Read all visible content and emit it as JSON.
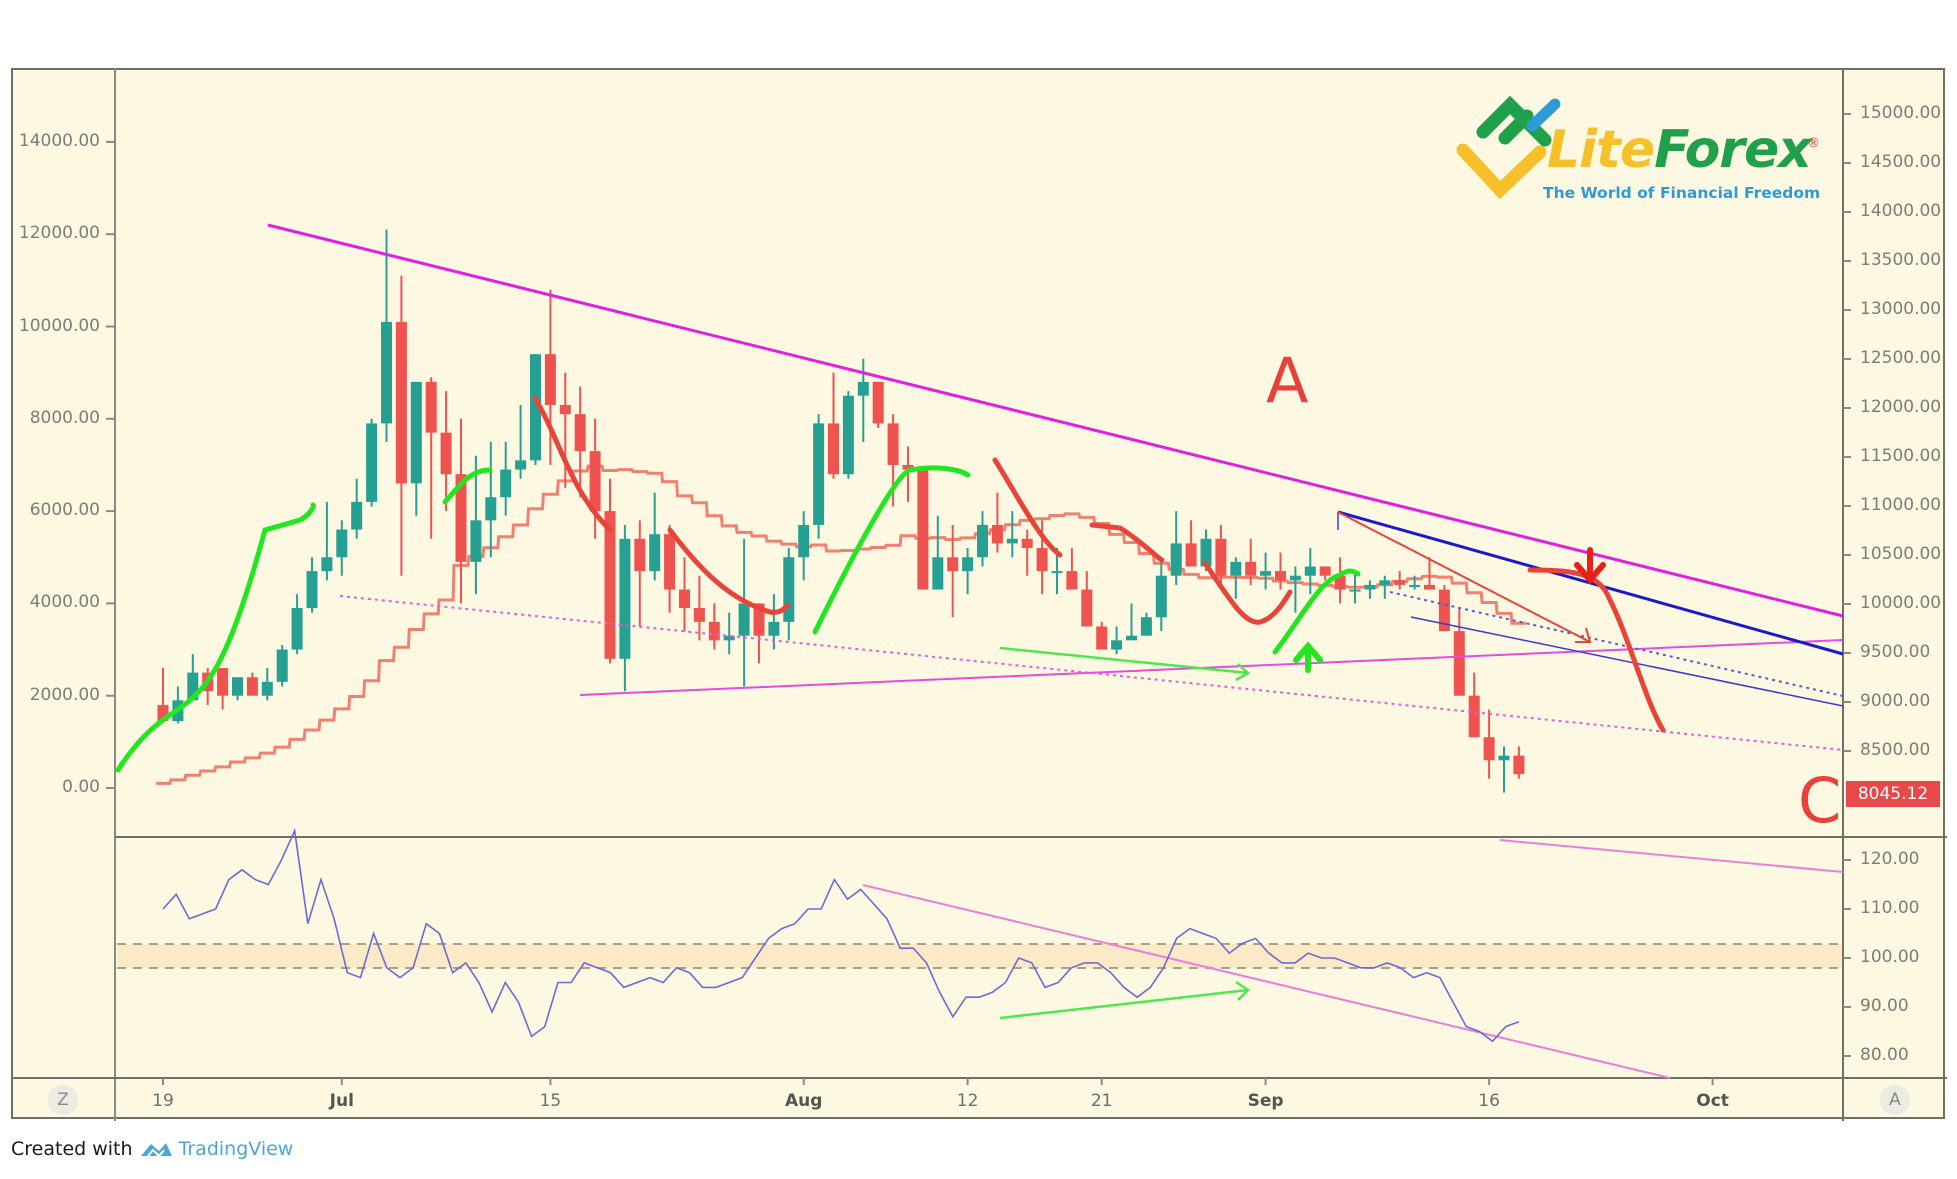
{
  "chart_data": {
    "type": "candlestick",
    "title": "",
    "xlabel": "",
    "ylabel": "",
    "x_ticks": [
      {
        "label": "19",
        "day": 0,
        "bold": false
      },
      {
        "label": "Jul",
        "day": 12,
        "bold": true
      },
      {
        "label": "15",
        "day": 26,
        "bold": false
      },
      {
        "label": "Aug",
        "day": 43,
        "bold": true
      },
      {
        "label": "12",
        "day": 54,
        "bold": false
      },
      {
        "label": "21",
        "day": 63,
        "bold": false
      },
      {
        "label": "Sep",
        "day": 74,
        "bold": true
      },
      {
        "label": "16",
        "day": 89,
        "bold": false
      },
      {
        "label": "Oct",
        "day": 104,
        "bold": true
      }
    ],
    "left_axis": {
      "ticks": [
        "14000.00",
        "12000.00",
        "10000.00",
        "8000.00",
        "6000.00",
        "4000.00",
        "2000.00",
        "0.00"
      ],
      "values": [
        14000,
        12000,
        10000,
        8000,
        6000,
        4000,
        2000,
        0
      ],
      "range": [
        -1000,
        15000
      ]
    },
    "right_axis": {
      "ticks": [
        "15000.00",
        "14500.00",
        "14000.00",
        "13500.00",
        "13000.00",
        "12500.00",
        "12000.00",
        "11500.00",
        "11000.00",
        "10500.00",
        "10000.00",
        "9500.00",
        "9000.00",
        "8500.00"
      ],
      "values": [
        15000,
        14500,
        14000,
        13500,
        13000,
        12500,
        12000,
        11500,
        11000,
        10500,
        10000,
        9500,
        9000,
        8500
      ]
    },
    "last_price": "8045.12",
    "indicator": {
      "ticks": [
        "120.00",
        "110.00",
        "100.00",
        "90.00",
        "80.00"
      ],
      "values": [
        120,
        110,
        100,
        90,
        80
      ],
      "band": [
        97.8,
        102.2
      ],
      "series": [
        110,
        113,
        108,
        109,
        110,
        116,
        118,
        116,
        115,
        120,
        126,
        107,
        116,
        108,
        97,
        96,
        105,
        98,
        96,
        98,
        107,
        105,
        97,
        99,
        95,
        89,
        95,
        91,
        84,
        86,
        95,
        95,
        99,
        98,
        97,
        94,
        95,
        96,
        95,
        98,
        97,
        94,
        94,
        95,
        96,
        100,
        104,
        106,
        107,
        110,
        110,
        116,
        112,
        114,
        111,
        108,
        102,
        102,
        99,
        93,
        88,
        92,
        92,
        93,
        95,
        100,
        99,
        94,
        95,
        98,
        99,
        99,
        97,
        94,
        92,
        94,
        98,
        104,
        106,
        105,
        104,
        101,
        103,
        104,
        101,
        99,
        99,
        101,
        100,
        100,
        99,
        98,
        98,
        99,
        98,
        96,
        97,
        96,
        91,
        86,
        85,
        83,
        86,
        87
      ]
    },
    "candles": [
      [
        1800,
        2600,
        1700,
        1450
      ],
      [
        1450,
        2200,
        1400,
        1900
      ],
      [
        1900,
        2900,
        1900,
        2500
      ],
      [
        2500,
        2600,
        1800,
        2100
      ],
      [
        2600,
        2600,
        1700,
        2000
      ],
      [
        2000,
        2400,
        1900,
        2400
      ],
      [
        2400,
        2500,
        2000,
        2000
      ],
      [
        2000,
        2600,
        1900,
        2300
      ],
      [
        2300,
        3100,
        2200,
        3000
      ],
      [
        3000,
        4200,
        2900,
        3900
      ],
      [
        3900,
        5000,
        3800,
        4700
      ],
      [
        4700,
        6200,
        4500,
        5000
      ],
      [
        5000,
        5800,
        4600,
        5600
      ],
      [
        5600,
        6700,
        5400,
        6200
      ],
      [
        6200,
        8000,
        6100,
        7900
      ],
      [
        7900,
        12100,
        7500,
        10100
      ],
      [
        10100,
        11100,
        4600,
        6600
      ],
      [
        6600,
        8600,
        5900,
        8800
      ],
      [
        8800,
        8900,
        5400,
        7700
      ],
      [
        7700,
        8600,
        6000,
        6800
      ],
      [
        6800,
        8000,
        4000,
        4900
      ],
      [
        4900,
        7200,
        4200,
        5800
      ],
      [
        5800,
        7500,
        5000,
        6300
      ],
      [
        6300,
        7500,
        5900,
        6900
      ],
      [
        6900,
        8300,
        6700,
        7100
      ],
      [
        7100,
        9400,
        7000,
        9400
      ],
      [
        9400,
        10800,
        7000,
        8300
      ],
      [
        8300,
        9000,
        6500,
        8100
      ],
      [
        8100,
        8700,
        6300,
        7300
      ],
      [
        7300,
        8000,
        5400,
        6000
      ],
      [
        6000,
        6700,
        2700,
        2800
      ],
      [
        2800,
        5700,
        2100,
        5400
      ],
      [
        5400,
        5800,
        3500,
        4700
      ],
      [
        4700,
        6400,
        4500,
        5500
      ],
      [
        5500,
        5700,
        3800,
        4300
      ],
      [
        4300,
        5000,
        3400,
        3900
      ],
      [
        3900,
        4600,
        3200,
        3600
      ],
      [
        3600,
        4000,
        3000,
        3200
      ],
      [
        3200,
        3800,
        2900,
        3300
      ],
      [
        3300,
        5400,
        2200,
        4000
      ],
      [
        4000,
        3800,
        2700,
        3300
      ],
      [
        3300,
        4200,
        3000,
        3600
      ],
      [
        3600,
        5200,
        3200,
        5000
      ],
      [
        5000,
        6000,
        4500,
        5700
      ],
      [
        5700,
        8100,
        5400,
        7900
      ],
      [
        7900,
        9000,
        6700,
        6800
      ],
      [
        6800,
        8600,
        6700,
        8500
      ],
      [
        8500,
        9300,
        7500,
        8800
      ],
      [
        8800,
        8300,
        7800,
        7900
      ],
      [
        7900,
        8100,
        6100,
        7000
      ],
      [
        7000,
        7400,
        6200,
        6900
      ],
      [
        6900,
        6400,
        4700,
        4300
      ],
      [
        4300,
        5900,
        4300,
        5000
      ],
      [
        5000,
        5700,
        3700,
        4700
      ],
      [
        4700,
        5200,
        4200,
        5000
      ],
      [
        5000,
        6000,
        4800,
        5700
      ],
      [
        5700,
        6400,
        5100,
        5300
      ],
      [
        5300,
        6000,
        5000,
        5400
      ],
      [
        5400,
        5600,
        4600,
        5200
      ],
      [
        5200,
        5800,
        4200,
        4700
      ],
      [
        4700,
        5200,
        4200,
        4700
      ],
      [
        4700,
        5200,
        4300,
        4300
      ],
      [
        4300,
        4700,
        3600,
        3500
      ],
      [
        3500,
        3600,
        3200,
        3000
      ],
      [
        3000,
        3500,
        2900,
        3200
      ],
      [
        3200,
        4000,
        3200,
        3300
      ],
      [
        3300,
        3800,
        3300,
        3700
      ],
      [
        3700,
        4900,
        3400,
        4600
      ],
      [
        4600,
        6000,
        4400,
        5300
      ],
      [
        5300,
        5800,
        5000,
        4800
      ],
      [
        4800,
        5600,
        4700,
        5400
      ],
      [
        5400,
        5700,
        4400,
        4600
      ],
      [
        4600,
        5000,
        4100,
        4900
      ],
      [
        4900,
        5400,
        4400,
        4600
      ],
      [
        4600,
        5100,
        4300,
        4700
      ],
      [
        4700,
        5100,
        4300,
        4500
      ],
      [
        4500,
        4800,
        3800,
        4600
      ],
      [
        4600,
        5200,
        4200,
        4800
      ],
      [
        4800,
        4600,
        4500,
        4600
      ],
      [
        4600,
        5000,
        4000,
        4300
      ],
      [
        4300,
        4700,
        4000,
        4300
      ],
      [
        4300,
        4500,
        4100,
        4400
      ],
      [
        4400,
        4600,
        4100,
        4500
      ],
      [
        4500,
        4700,
        4300,
        4400
      ],
      [
        4400,
        4600,
        4300,
        4400
      ],
      [
        4400,
        5000,
        4300,
        4300
      ],
      [
        4300,
        4400,
        3700,
        3400
      ],
      [
        3400,
        3900,
        2100,
        2000
      ],
      [
        2000,
        2500,
        1900,
        1100
      ],
      [
        1100,
        1700,
        200,
        600
      ],
      [
        600,
        900,
        -100,
        700
      ],
      [
        700,
        900,
        200,
        300
      ]
    ],
    "series": [
      {
        "name": "slow-step-ma",
        "color": "#f08070",
        "style": "step"
      },
      {
        "name": "trend-up-arcs",
        "color": "#22e622"
      },
      {
        "name": "trend-down-arcs",
        "color": "#e8453a"
      },
      {
        "name": "rsi-like-oscillator",
        "color": "#6a6ad8"
      }
    ],
    "annotations": [
      {
        "text": "A",
        "color": "#e8403a"
      },
      {
        "text": "C",
        "color": "#e8403a"
      }
    ]
  },
  "colors": {
    "background": "#fdf8e2",
    "bull": "#26a092",
    "bear": "#ef5350",
    "magenta_trendline": "#e020e0",
    "navy_channel": "#1a1acc",
    "pink_trendline": "#f080e0",
    "indicator_line": "#6a6ad8",
    "band_fill": "#fbe6c0"
  },
  "corner_buttons": {
    "left": "Z",
    "right": "A"
  },
  "logo": {
    "brand_part1": "Lite",
    "brand_part2": "Forex",
    "registered": "®",
    "tagline": "The World of Financial Freedom"
  },
  "footer": {
    "prefix": "Created with",
    "brand": "TradingView"
  }
}
